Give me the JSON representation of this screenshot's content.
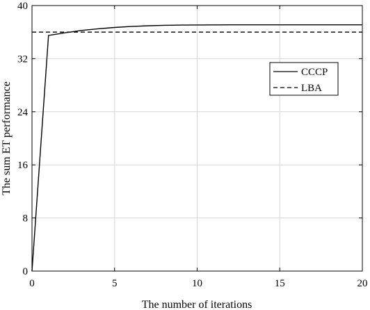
{
  "chart_data": {
    "type": "line",
    "xlabel": "The number of iterations",
    "ylabel": "The sum ET performance",
    "xlim": [
      0,
      20
    ],
    "ylim": [
      0,
      40
    ],
    "xticks": [
      0,
      5,
      10,
      15,
      20
    ],
    "yticks": [
      0,
      8,
      16,
      24,
      32,
      40
    ],
    "grid": true,
    "legend_position": "top-right",
    "series": [
      {
        "name": "CCCP",
        "style": "solid",
        "color": "#000000",
        "x": [
          0,
          1,
          2,
          3,
          4,
          5,
          6,
          7,
          8,
          9,
          10,
          11,
          12,
          13,
          14,
          15,
          16,
          17,
          18,
          19,
          20
        ],
        "y": [
          0,
          35.5,
          35.9,
          36.25,
          36.5,
          36.7,
          36.85,
          36.95,
          37.02,
          37.06,
          37.08,
          37.09,
          37.1,
          37.1,
          37.1,
          37.1,
          37.1,
          37.1,
          37.1,
          37.1,
          37.1
        ]
      },
      {
        "name": "LBA",
        "style": "dashed",
        "color": "#000000",
        "x": [
          0,
          20
        ],
        "y": [
          36.0,
          36.0
        ]
      }
    ]
  }
}
